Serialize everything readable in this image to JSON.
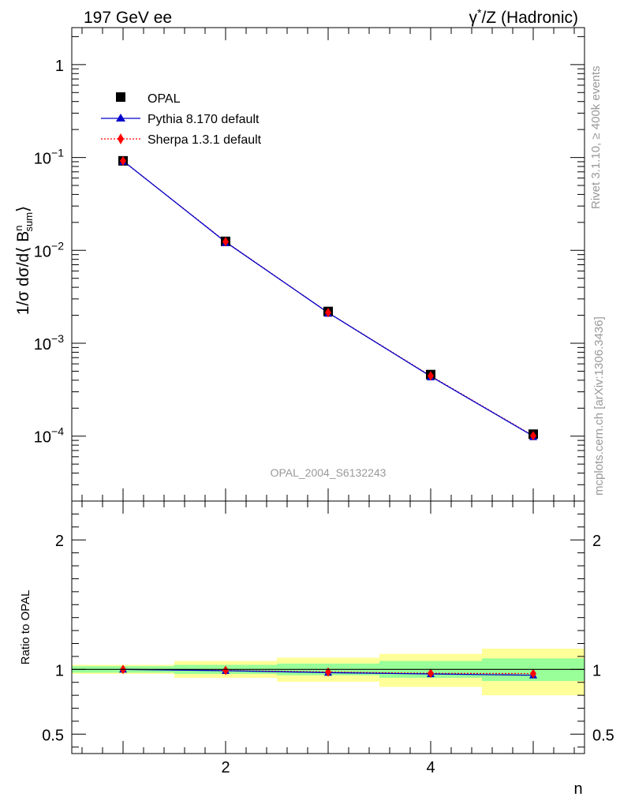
{
  "header": {
    "left_title": "197 GeV ee",
    "right_title_base": "γ",
    "right_title_sup": "*",
    "right_title_rest": "/Z (Hadronic)"
  },
  "side_labels": {
    "rivet": "Rivet 3.1.10, ≥ 400k events",
    "mcplots": "mcplots.cern.ch [arXiv:1306.3436]"
  },
  "watermark": "OPAL_2004_S6132243",
  "legend": {
    "opal": "OPAL",
    "pythia": "Pythia 8.170 default",
    "sherpa": "Sherpa 1.3.1 default"
  },
  "colors": {
    "opal": "#000000",
    "pythia": "#0000cc",
    "sherpa": "#ff0000",
    "band_inner": "#99ff99",
    "band_outer": "#ffff99"
  },
  "chart_data": [
    {
      "type": "line",
      "panel": "main",
      "ylabel_prefix": "1/σ dσ/d⟨ B",
      "ylabel_sup": "n",
      "ylabel_sub": "sum",
      "ylabel_suffix": "⟩",
      "yscale": "log",
      "ylim": [
        2e-05,
        2.5
      ],
      "xlim": [
        0.5,
        5.5
      ],
      "y_ticks": [
        {
          "value": 1,
          "label": "1"
        },
        {
          "value": 0.1,
          "label": "10",
          "exp": "−1"
        },
        {
          "value": 0.01,
          "label": "10",
          "exp": "−2"
        },
        {
          "value": 0.001,
          "label": "10",
          "exp": "−3"
        },
        {
          "value": 0.0001,
          "label": "10",
          "exp": "−4"
        }
      ],
      "x": [
        1,
        2,
        3,
        4,
        5
      ],
      "series": [
        {
          "name": "OPAL",
          "values": [
            0.092,
            0.0125,
            0.0022,
            0.00046,
            0.000105
          ]
        },
        {
          "name": "Pythia 8.170 default",
          "values": [
            0.092,
            0.0123,
            0.00213,
            0.00044,
            0.0001
          ]
        },
        {
          "name": "Sherpa 1.3.1 default",
          "values": [
            0.092,
            0.0124,
            0.00214,
            0.000445,
            0.000101
          ]
        }
      ]
    },
    {
      "type": "line",
      "panel": "ratio",
      "ylabel": "Ratio to OPAL",
      "xlabel": "n",
      "ylim": [
        0.35,
        2.3
      ],
      "xlim": [
        0.5,
        5.5
      ],
      "y_ticks": [
        {
          "value": 2,
          "label": "2"
        },
        {
          "value": 1,
          "label": "1"
        },
        {
          "value": 0.5,
          "label": "0.5"
        }
      ],
      "x_ticks": [
        {
          "value": 2,
          "label": "2"
        },
        {
          "value": 4,
          "label": "4"
        }
      ],
      "bands": [
        {
          "x0": 0.5,
          "x1": 1.5,
          "inner": [
            0.975,
            1.025
          ],
          "outer": [
            0.965,
            1.035
          ]
        },
        {
          "x0": 1.5,
          "x1": 2.5,
          "inner": [
            0.965,
            1.035
          ],
          "outer": [
            0.935,
            1.065
          ]
        },
        {
          "x0": 2.5,
          "x1": 3.5,
          "inner": [
            0.955,
            1.045
          ],
          "outer": [
            0.905,
            1.09
          ]
        },
        {
          "x0": 3.5,
          "x1": 4.5,
          "inner": [
            0.935,
            1.065
          ],
          "outer": [
            0.865,
            1.12
          ]
        },
        {
          "x0": 4.5,
          "x1": 5.5,
          "inner": [
            0.91,
            1.085
          ],
          "outer": [
            0.8,
            1.16
          ]
        }
      ],
      "x": [
        1,
        2,
        3,
        4,
        5
      ],
      "series": [
        {
          "name": "Pythia 8.170 default",
          "values": [
            1.0,
            0.99,
            0.975,
            0.965,
            0.955
          ]
        },
        {
          "name": "Sherpa 1.3.1 default",
          "values": [
            1.0,
            0.992,
            0.98,
            0.97,
            0.968
          ]
        }
      ]
    }
  ]
}
